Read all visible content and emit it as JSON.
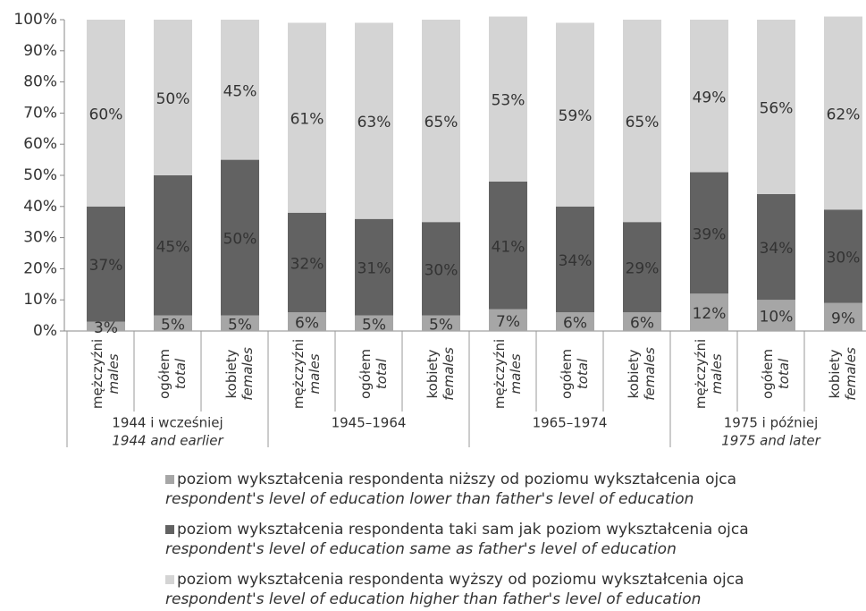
{
  "chart_data": {
    "type": "stacked_bar",
    "categories": [
      "mężczyźni",
      "ogółem",
      "kobiety",
      "mężczyźni",
      "ogółem",
      "kobiety",
      "mężczyźni",
      "ogółem",
      "kobiety",
      "mężczyźni",
      "ogółem",
      "kobiety"
    ],
    "categories_en": [
      "males",
      "total",
      "females",
      "males",
      "total",
      "females",
      "males",
      "total",
      "females",
      "males",
      "total",
      "females"
    ],
    "groups": [
      {
        "label": "1944 i wcześniej",
        "label_en": "1944 and earlier"
      },
      {
        "label": "1945–1964"
      },
      {
        "label": "1965–1974"
      },
      {
        "label": "1975 i później",
        "label_en": "1975 and later"
      }
    ],
    "series": [
      {
        "name": "poziom wykształcenia respondenta niższy od poziomu wykształcenia ojca",
        "name_en": "respondent's level of education lower than father's level of education",
        "color": "#a6a6a6",
        "values": [
          3,
          5,
          5,
          6,
          5,
          5,
          7,
          6,
          6,
          12,
          10,
          9
        ],
        "value_labels": [
          "3%",
          "5%",
          "5%",
          "6%",
          "5%",
          "5%",
          "7%",
          "6%",
          "6%",
          "12%",
          "10%",
          "9%"
        ]
      },
      {
        "name": "poziom wykształcenia respondenta taki sam jak poziom wykształcenia ojca",
        "name_en": "respondent's level of education same as father's level of education",
        "color": "#626262",
        "values": [
          37,
          45,
          50,
          32,
          31,
          30,
          41,
          34,
          29,
          39,
          34,
          30
        ],
        "value_labels": [
          "37%",
          "45%",
          "50%",
          "32%",
          "31%",
          "30%",
          "41%",
          "34%",
          "29%",
          "39%",
          "34%",
          "30%"
        ]
      },
      {
        "name": "poziom wykształcenia respondenta wyższy od poziomu wykształcenia ojca",
        "name_en": "respondent's level of education higher than father's level of education",
        "color": "#d4d4d4",
        "values": [
          60,
          50,
          45,
          61,
          63,
          65,
          53,
          59,
          65,
          49,
          56,
          62
        ],
        "value_labels": [
          "60%",
          "50%",
          "45%",
          "61%",
          "63%",
          "65%",
          "53%",
          "59%",
          "65%",
          "49%",
          "56%",
          "62%"
        ]
      }
    ],
    "ylim": [
      0,
      100
    ],
    "yticks": [
      {
        "value": 0,
        "label": "0%"
      },
      {
        "value": 10,
        "label": "10%"
      },
      {
        "value": 20,
        "label": "20%"
      },
      {
        "value": 30,
        "label": "30%"
      },
      {
        "value": 40,
        "label": "40%"
      },
      {
        "value": 50,
        "label": "50%"
      },
      {
        "value": 60,
        "label": "60%"
      },
      {
        "value": 70,
        "label": "70%"
      },
      {
        "value": 80,
        "label": "80%"
      },
      {
        "value": 90,
        "label": "90%"
      },
      {
        "value": 100,
        "label": "100%"
      }
    ]
  }
}
